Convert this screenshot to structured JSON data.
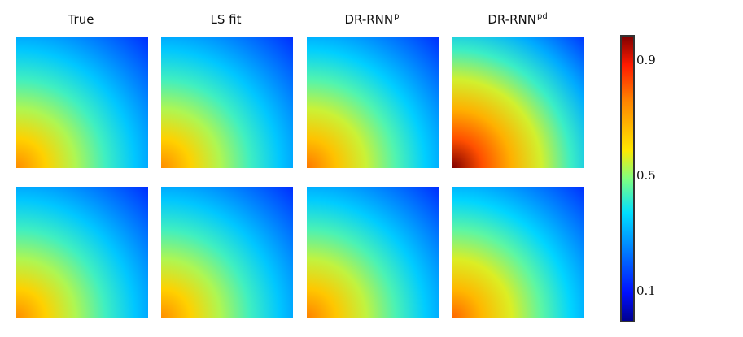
{
  "columns": [
    {
      "label": "True",
      "sup": ""
    },
    {
      "label": "LS fit",
      "sup": ""
    },
    {
      "label": "DR-RNN",
      "sup": "p"
    },
    {
      "label": "DR-RNN",
      "sup": "pd"
    }
  ],
  "colorbar": {
    "ticks": [
      "0.9",
      "0.5",
      "0.1"
    ],
    "tick_values": [
      0.9,
      0.5,
      0.1
    ],
    "range": [
      0.03,
      0.98
    ]
  },
  "fields": [
    [
      0.75,
      0.75,
      0.78,
      0.98
    ],
    [
      0.75,
      0.75,
      0.77,
      0.8
    ]
  ],
  "colors": {
    "max": "#800000",
    "mid": "#80ff80",
    "min": "#00008f"
  }
}
